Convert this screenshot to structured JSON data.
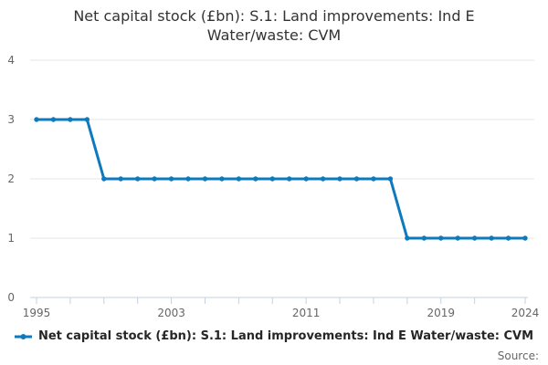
{
  "title_lines": [
    "Net capital stock (£bn): S.1: Land improvements: Ind E",
    "Water/waste: CVM"
  ],
  "legend": {
    "label": "Net capital stock (£bn): S.1: Land improvements: Ind E Water/waste: CVM",
    "marker": "line-with-dot"
  },
  "source_label": "Source:",
  "colors": {
    "series": "#0d7abe",
    "gridline": "#e6e6e6",
    "axis": "#c6d2de",
    "tick_label": "#666666",
    "title": "#333333",
    "legend_text": "#262626",
    "source": "#666666"
  },
  "chart_data": {
    "type": "line",
    "title": "Net capital stock (£bn): S.1: Land improvements: Ind E Water/waste: CVM",
    "xlabel": "",
    "ylabel": "",
    "x": [
      1995,
      1996,
      1997,
      1998,
      1999,
      2000,
      2001,
      2002,
      2003,
      2004,
      2005,
      2006,
      2007,
      2008,
      2009,
      2010,
      2011,
      2012,
      2013,
      2014,
      2015,
      2016,
      2017,
      2018,
      2019,
      2020,
      2021,
      2022,
      2023,
      2024
    ],
    "series": [
      {
        "name": "Net capital stock (£bn): S.1: Land improvements: Ind E Water/waste: CVM",
        "values": [
          3,
          3,
          3,
          3,
          2,
          2,
          2,
          2,
          2,
          2,
          2,
          2,
          2,
          2,
          2,
          2,
          2,
          2,
          2,
          2,
          2,
          2,
          1,
          1,
          1,
          1,
          1,
          1,
          1,
          1
        ]
      }
    ],
    "ylim": [
      0,
      4
    ],
    "yticks": [
      0,
      1,
      2,
      3,
      4
    ],
    "xticks_minor": [
      1995,
      1997,
      1999,
      2001,
      2003,
      2005,
      2007,
      2009,
      2011,
      2013,
      2015,
      2017,
      2019,
      2021,
      2024
    ],
    "xtick_labels": [
      1995,
      2003,
      2011,
      2019,
      2024
    ],
    "grid": "horizontal",
    "legend_position": "bottom",
    "marker": "circle"
  }
}
